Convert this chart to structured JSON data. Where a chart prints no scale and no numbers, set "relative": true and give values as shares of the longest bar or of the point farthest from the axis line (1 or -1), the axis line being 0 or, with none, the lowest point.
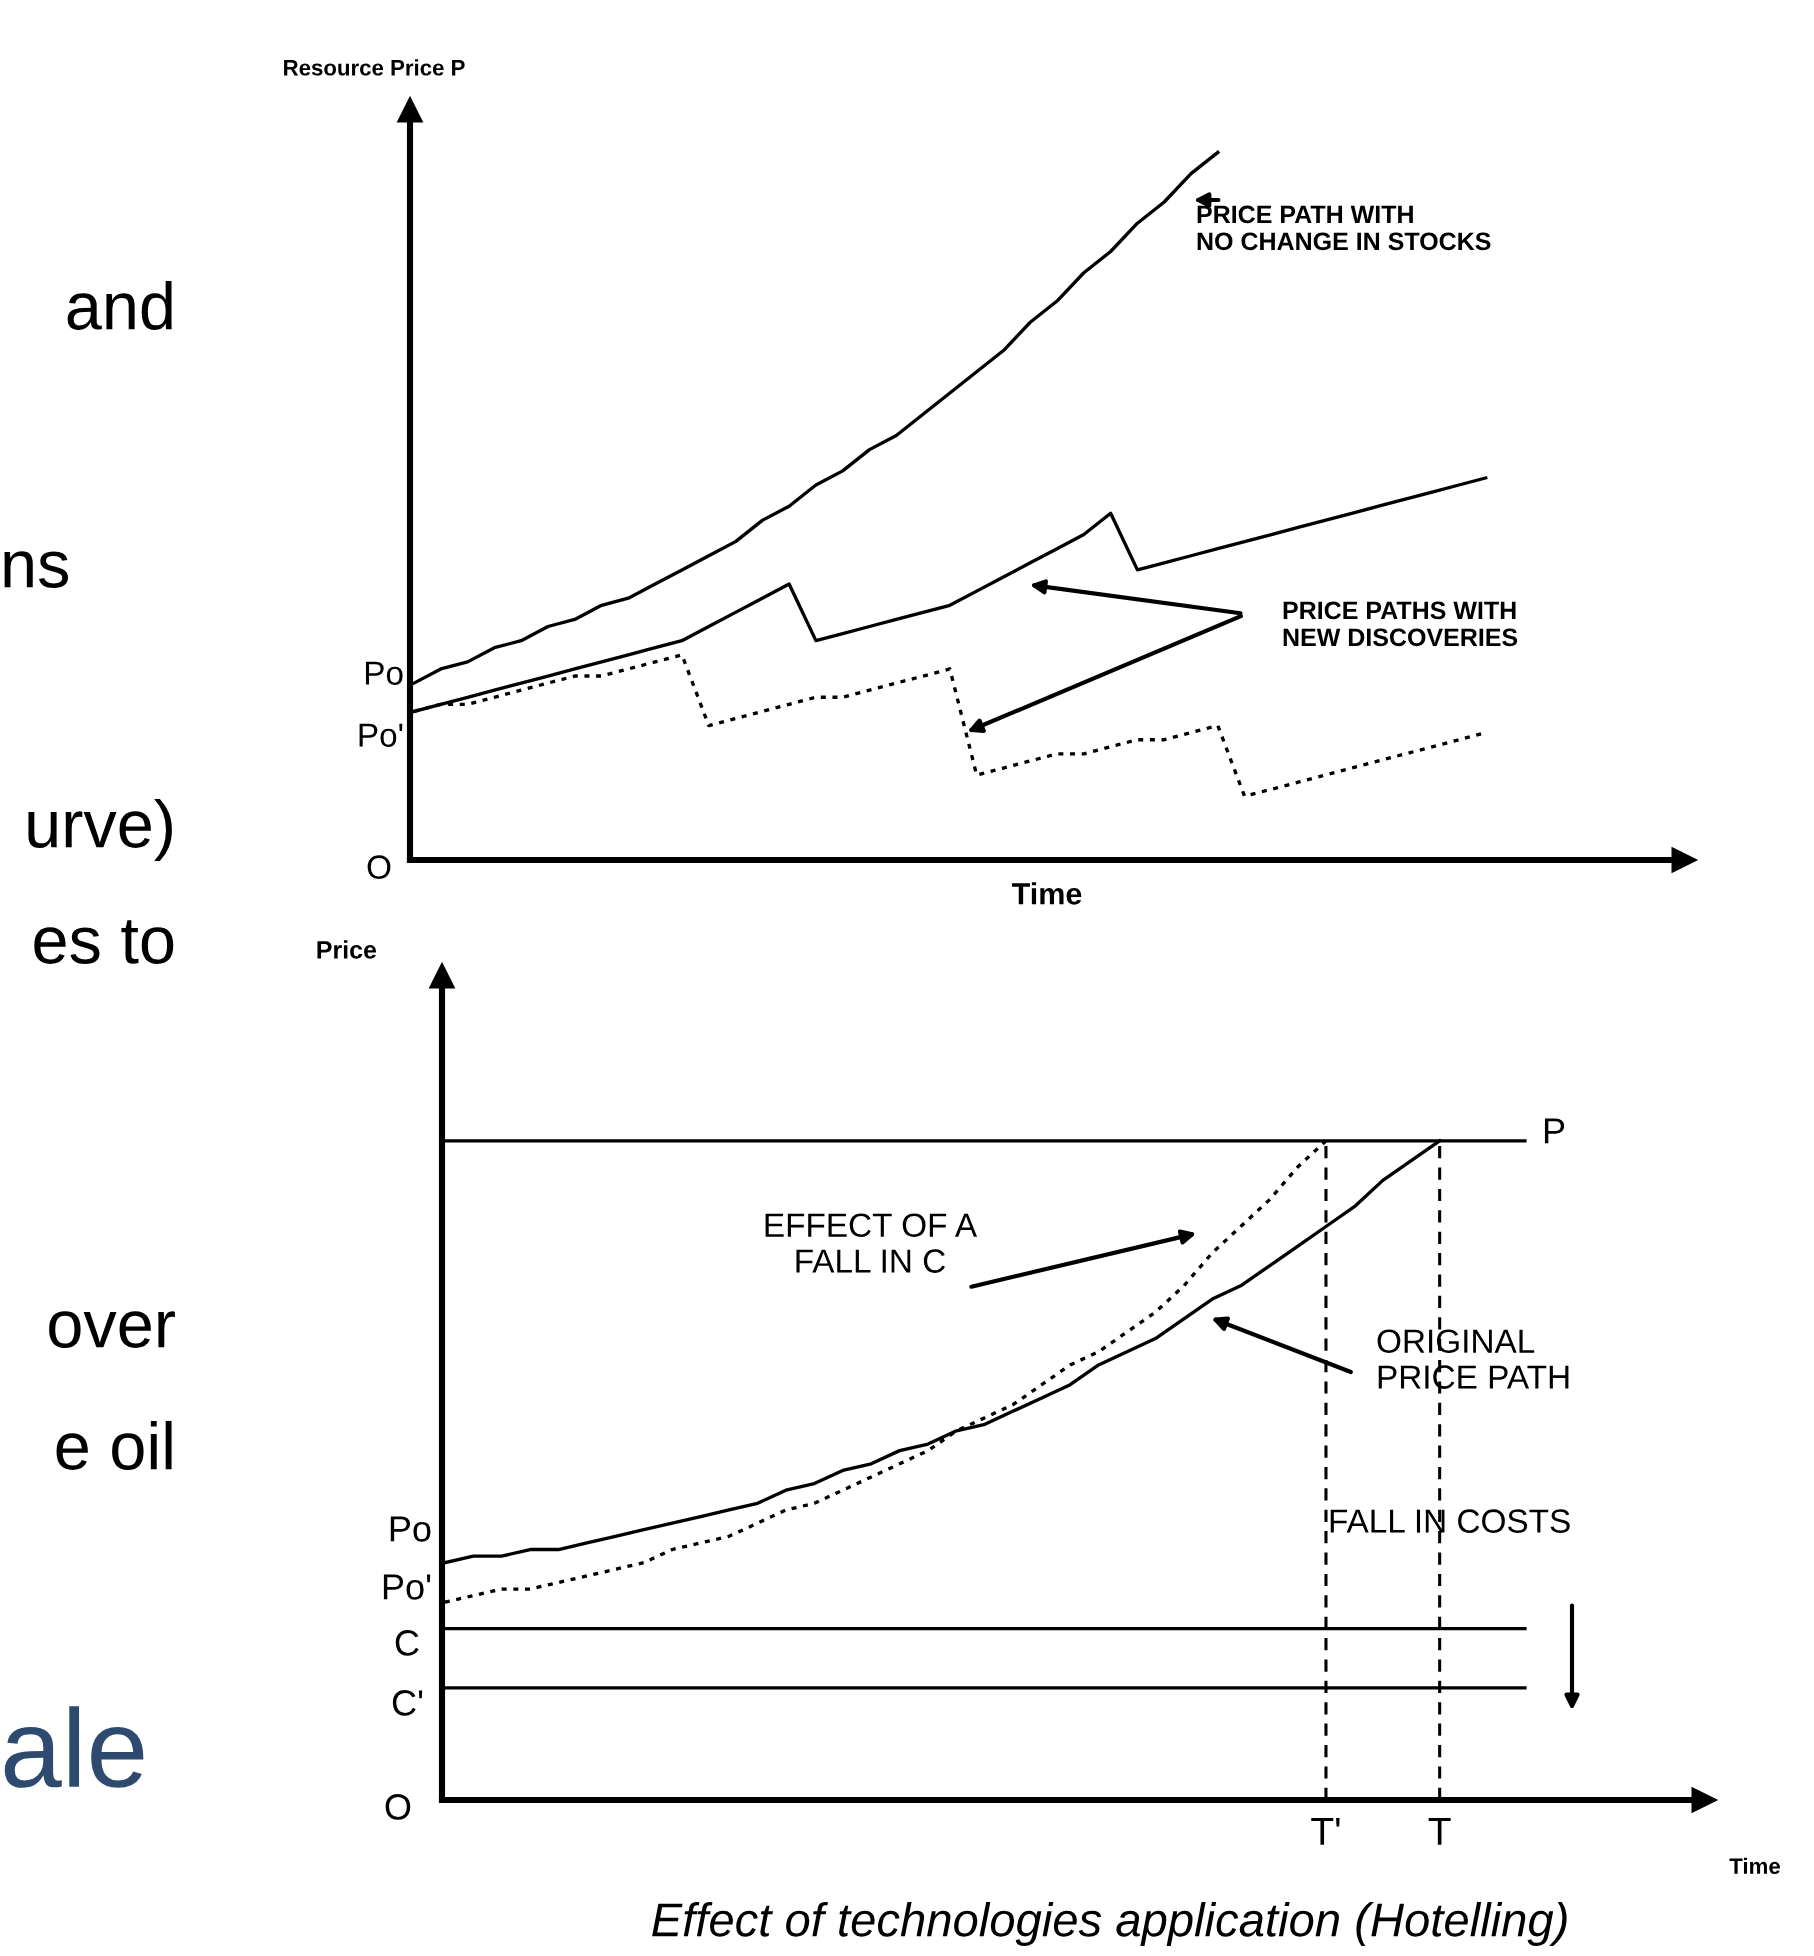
{
  "chart_data": [
    {
      "type": "line",
      "relative": true,
      "tick_labels": false,
      "ylabel": "Resource Price P",
      "xlabel": "Time",
      "categories": [
        null,
        null,
        null,
        null,
        null,
        null,
        null,
        null,
        null,
        null,
        null,
        null,
        null,
        null,
        null,
        null,
        null,
        null,
        null,
        null,
        null,
        null,
        null,
        null,
        null,
        null,
        null,
        null,
        null,
        null,
        null,
        null,
        null,
        null,
        null,
        null,
        null,
        null,
        null,
        null,
        null,
        null,
        null,
        null,
        null,
        null,
        null
      ],
      "series": [
        {
          "color": "#000000",
          "line_style": "solid",
          "values": [
            0.25,
            0.27,
            0.28,
            0.3,
            0.31,
            0.33,
            0.34,
            0.36,
            0.37,
            0.39,
            0.41,
            0.43,
            0.45,
            0.48,
            0.5,
            0.53,
            0.55,
            0.58,
            0.6,
            0.63,
            0.66,
            0.69,
            0.72,
            0.76,
            0.79,
            0.83,
            0.86,
            0.9,
            0.93,
            0.97,
            1.0,
            null,
            null,
            null,
            null,
            null,
            null,
            null,
            null,
            null,
            null,
            null,
            null,
            null,
            null,
            null,
            null
          ]
        },
        {
          "color": "#000000",
          "line_style": "solid",
          "values": [
            0.21,
            0.22,
            0.23,
            0.24,
            0.25,
            0.26,
            0.27,
            0.28,
            0.29,
            0.3,
            0.31,
            0.33,
            0.35,
            0.37,
            0.39,
            0.31,
            0.32,
            0.33,
            0.34,
            0.35,
            0.36,
            0.38,
            0.4,
            0.42,
            0.44,
            0.46,
            0.49,
            0.41,
            0.42,
            0.43,
            0.44,
            0.45,
            0.46,
            0.47,
            0.48,
            0.49,
            0.5,
            0.51,
            0.52,
            0.53,
            0.54,
            null,
            null,
            null,
            null,
            null,
            null
          ]
        },
        {
          "color": "#000000",
          "line_style": "dotted",
          "values": [
            0.21,
            0.22,
            0.22,
            0.23,
            0.24,
            0.25,
            0.26,
            0.26,
            0.27,
            0.28,
            0.29,
            0.19,
            0.2,
            0.21,
            0.22,
            0.23,
            0.23,
            0.24,
            0.25,
            0.26,
            0.27,
            0.12,
            0.13,
            0.14,
            0.15,
            0.15,
            0.16,
            0.17,
            0.17,
            0.18,
            0.19,
            0.09,
            0.1,
            0.11,
            0.12,
            0.13,
            0.14,
            0.15,
            0.16,
            0.17,
            0.18,
            null,
            null,
            null,
            null,
            null,
            null
          ]
        }
      ],
      "annotations": [
        "Po",
        "Po'",
        "O",
        "PRICE PATH WITH\nNO CHANGE IN STOCKS",
        "PRICE PATHS WITH\nNEW DISCOVERIES"
      ]
    },
    {
      "type": "line",
      "relative": true,
      "tick_labels": "x",
      "ylabel": "Price",
      "xlabel": "Time",
      "categories": [
        null,
        null,
        null,
        null,
        null,
        null,
        null,
        null,
        null,
        null,
        null,
        null,
        null,
        null,
        null,
        null,
        null,
        null,
        null,
        null,
        null,
        null,
        null,
        null,
        null,
        null,
        null,
        null,
        null,
        null,
        null,
        "T'",
        null,
        null,
        null,
        "T",
        null,
        null,
        null,
        null,
        null,
        null,
        null,
        null,
        null
      ],
      "series": [
        {
          "color": "#000000",
          "line_style": "solid",
          "values": [
            1.0,
            1.0,
            1.0,
            1.0,
            1.0,
            1.0,
            1.0,
            1.0,
            1.0,
            1.0,
            1.0,
            1.0,
            1.0,
            1.0,
            1.0,
            1.0,
            1.0,
            1.0,
            1.0,
            1.0,
            1.0,
            1.0,
            1.0,
            1.0,
            1.0,
            1.0,
            1.0,
            1.0,
            1.0,
            1.0,
            1.0,
            1.0,
            1.0,
            1.0,
            1.0,
            1.0,
            1.0,
            1.0,
            1.0,
            null,
            null,
            null,
            null,
            null,
            null
          ]
        },
        {
          "color": "#000000",
          "line_style": "solid",
          "values": [
            0.26,
            0.26,
            0.26,
            0.26,
            0.26,
            0.26,
            0.26,
            0.26,
            0.26,
            0.26,
            0.26,
            0.26,
            0.26,
            0.26,
            0.26,
            0.26,
            0.26,
            0.26,
            0.26,
            0.26,
            0.26,
            0.26,
            0.26,
            0.26,
            0.26,
            0.26,
            0.26,
            0.26,
            0.26,
            0.26,
            0.26,
            0.26,
            0.26,
            0.26,
            0.26,
            0.26,
            0.26,
            0.26,
            0.26,
            null,
            null,
            null,
            null,
            null,
            null
          ]
        },
        {
          "color": "#000000",
          "line_style": "solid",
          "values": [
            0.17,
            0.17,
            0.17,
            0.17,
            0.17,
            0.17,
            0.17,
            0.17,
            0.17,
            0.17,
            0.17,
            0.17,
            0.17,
            0.17,
            0.17,
            0.17,
            0.17,
            0.17,
            0.17,
            0.17,
            0.17,
            0.17,
            0.17,
            0.17,
            0.17,
            0.17,
            0.17,
            0.17,
            0.17,
            0.17,
            0.17,
            0.17,
            0.17,
            0.17,
            0.17,
            0.17,
            0.17,
            0.17,
            0.17,
            null,
            null,
            null,
            null,
            null,
            null
          ]
        },
        {
          "color": "#000000",
          "line_style": "solid",
          "values": [
            0.36,
            0.37,
            0.37,
            0.38,
            0.38,
            0.39,
            0.4,
            0.41,
            0.42,
            0.43,
            0.44,
            0.45,
            0.47,
            0.48,
            0.5,
            0.51,
            0.53,
            0.54,
            0.56,
            0.57,
            0.59,
            0.61,
            0.63,
            0.66,
            0.68,
            0.7,
            0.73,
            0.76,
            0.78,
            0.81,
            0.84,
            0.87,
            0.9,
            0.94,
            0.97,
            1.0,
            null,
            null,
            null,
            null,
            null,
            null,
            null,
            null,
            null
          ]
        },
        {
          "color": "#000000",
          "line_style": "dotted",
          "values": [
            0.3,
            0.31,
            0.32,
            0.32,
            0.33,
            0.34,
            0.35,
            0.36,
            0.38,
            0.39,
            0.4,
            0.42,
            0.44,
            0.45,
            0.47,
            0.49,
            0.51,
            0.53,
            0.56,
            0.58,
            0.6,
            0.63,
            0.66,
            0.68,
            0.71,
            0.74,
            0.78,
            0.83,
            0.87,
            0.91,
            0.96,
            1.0,
            null,
            null,
            null,
            null,
            null,
            null,
            null,
            null,
            null,
            null,
            null,
            null,
            null
          ]
        }
      ],
      "ref_lines": [
        {
          "axis": "x",
          "value": "T'",
          "line_style": "dashed",
          "color": "#000000"
        },
        {
          "axis": "x",
          "value": "T",
          "line_style": "dashed",
          "color": "#000000"
        }
      ],
      "annotations": [
        "Po",
        "Po'",
        "C",
        "C'",
        "O",
        "P",
        "EFFECT OF A\nFALL IN C",
        "ORIGINAL\nPRICE PATH",
        "FALL IN COSTS",
        "Effect of technologies application (Hotelling)"
      ]
    },
    {
      "type": "other",
      "annotations": [
        "and",
        "ns",
        "urve)",
        "es to",
        "over",
        "e oil",
        "ale"
      ]
    }
  ]
}
